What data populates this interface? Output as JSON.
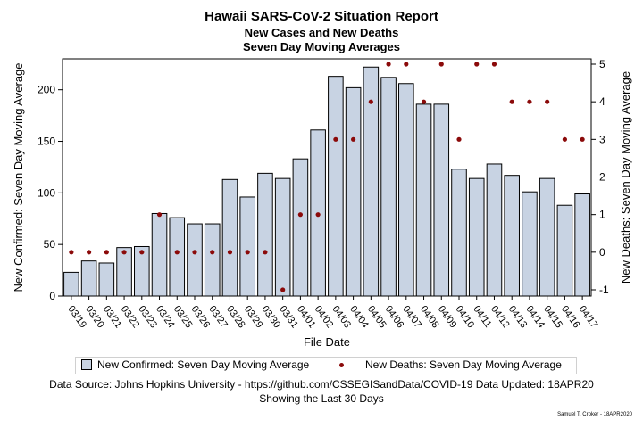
{
  "chart_data": {
    "type": "bar",
    "title": "Hawaii SARS-CoV-2 Situation Report",
    "subtitle1": "New Cases and New Deaths",
    "subtitle2": "Seven Day Moving Averages",
    "xlabel": "File Date",
    "ylabel_left": "New Confirmed: Seven Day Moving Average",
    "ylabel_right": "New Deaths: Seven Day Moving Average",
    "categories": [
      "03/19",
      "03/20",
      "03/21",
      "03/22",
      "03/23",
      "03/24",
      "03/25",
      "03/26",
      "03/27",
      "03/28",
      "03/29",
      "03/30",
      "03/31",
      "04/01",
      "04/02",
      "04/03",
      "04/04",
      "04/05",
      "04/06",
      "04/07",
      "04/08",
      "04/09",
      "04/10",
      "04/11",
      "04/12",
      "04/13",
      "04/14",
      "04/15",
      "04/16",
      "04/17"
    ],
    "series": [
      {
        "name": "New Confirmed: Seven Day Moving Average",
        "type": "bar",
        "axis": "left",
        "values": [
          23,
          34,
          32,
          47,
          48,
          80,
          76,
          70,
          70,
          113,
          96,
          119,
          114,
          133,
          161,
          213,
          202,
          222,
          212,
          206,
          186,
          186,
          123,
          114,
          128,
          117,
          101,
          114,
          88,
          99
        ]
      },
      {
        "name": "New Deaths: Seven Day Moving Average",
        "type": "scatter",
        "axis": "right",
        "values": [
          0,
          0,
          0,
          0,
          0,
          1,
          0,
          0,
          0,
          0,
          0,
          0,
          -1,
          1,
          1,
          3,
          3,
          4,
          5,
          5,
          4,
          5,
          3,
          5,
          5,
          4,
          4,
          4,
          3,
          3
        ]
      }
    ],
    "ylim_left": [
      0,
      230
    ],
    "yticks_left": [
      0,
      50,
      100,
      150,
      200
    ],
    "ylim_right": [
      -1,
      5
    ],
    "yticks_right": [
      -1,
      0,
      1,
      2,
      3,
      4,
      5
    ],
    "bar_color": "#c8d3e3",
    "marker_color": "#8b0a0a",
    "legend_position": "bottom"
  },
  "footer": {
    "source": "Data Source: Johns Hopkins University - https://github.com/CSSEGISandData/COVID-19 Data Updated: 18APR20",
    "range": "Showing the Last 30 Days",
    "credit": "Samuel T. Croker - 18APR2020"
  }
}
